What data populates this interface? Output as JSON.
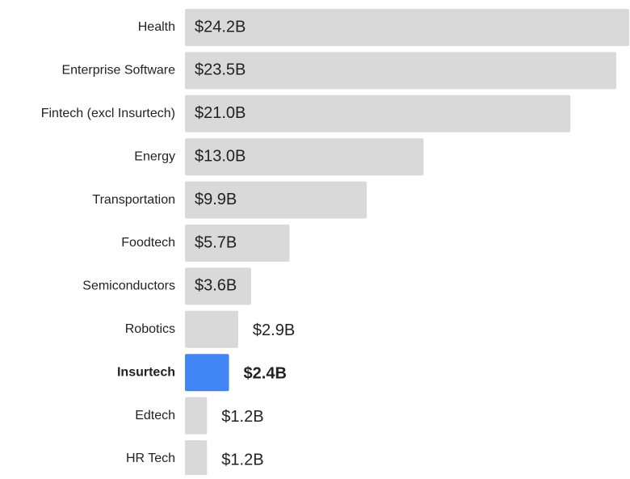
{
  "chart_data": {
    "type": "bar",
    "orientation": "horizontal",
    "categories": [
      "Health",
      "Enterprise Software",
      "Fintech (excl Insurtech)",
      "Energy",
      "Transportation",
      "Foodtech",
      "Semiconductors",
      "Robotics",
      "Insurtech",
      "Edtech",
      "HR Tech"
    ],
    "values": [
      24.2,
      23.5,
      21.0,
      13.0,
      9.9,
      5.7,
      3.6,
      2.9,
      2.4,
      1.2,
      1.2
    ],
    "value_labels": [
      "$24.2B",
      "$23.5B",
      "$21.0B",
      "$13.0B",
      "$9.9B",
      "$5.7B",
      "$3.6B",
      "$2.9B",
      "$2.4B",
      "$1.2B",
      "$1.2B"
    ],
    "colors": [
      "#d9d9d9",
      "#d9d9d9",
      "#d9d9d9",
      "#d9d9d9",
      "#d9d9d9",
      "#d9d9d9",
      "#d9d9d9",
      "#d9d9d9",
      "#4285f4",
      "#d9d9d9",
      "#d9d9d9"
    ]
  }
}
